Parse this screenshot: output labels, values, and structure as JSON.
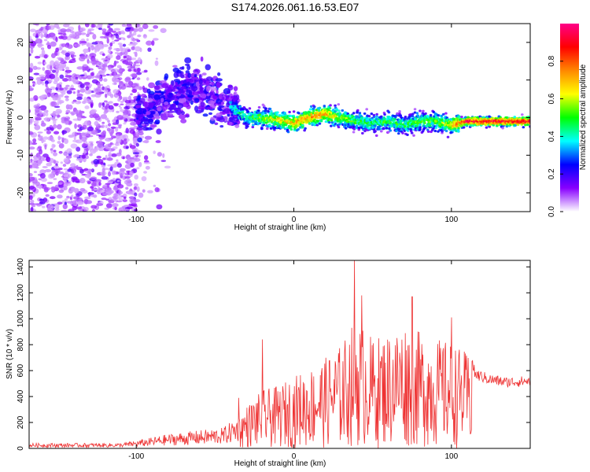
{
  "title": "S174.2026.061.16.53.E07",
  "colors": {
    "snr_line": "#ee3333",
    "axis": "#000000"
  },
  "chart_data": [
    {
      "type": "heatmap",
      "name": "spectrogram",
      "xlabel": "Height of straight line (km)",
      "ylabel": "Frequency (Hz)",
      "xlim": [
        -168,
        150
      ],
      "ylim": [
        -25,
        25
      ],
      "x_ticks": [
        -100,
        0,
        100
      ],
      "y_ticks": [
        -20,
        -10,
        0,
        10,
        20
      ],
      "colorbar": {
        "label": "Normalized spectral amplitude",
        "range": [
          0,
          1
        ],
        "ticks": [
          "0.0",
          "0.2",
          "0.4",
          "0.6",
          "0.8"
        ],
        "colormap": [
          "#ffffff",
          "#8800ff",
          "#0000ff",
          "#00ffff",
          "#00ff00",
          "#ffff00",
          "#ff8800",
          "#ff0000",
          "#ff0088"
        ]
      },
      "ridge": {
        "description_free": true,
        "x": [
          -100,
          -90,
          -80,
          -70,
          -60,
          -50,
          -40,
          -30,
          -20,
          -10,
          0,
          10,
          20,
          30,
          40,
          50,
          60,
          70,
          80,
          90,
          100,
          110,
          120,
          130,
          140,
          150
        ],
        "freq": [
          0,
          2,
          6,
          7,
          8,
          5,
          3,
          0,
          0,
          -0.5,
          -1.5,
          0,
          1,
          0,
          -1,
          -1.5,
          -1,
          -2,
          -1,
          -1,
          -2,
          -1,
          -1,
          -1,
          -1,
          -1
        ],
        "amplitude": [
          0.2,
          0.25,
          0.25,
          0.2,
          0.2,
          0.2,
          0.35,
          0.45,
          0.55,
          0.65,
          0.7,
          0.75,
          0.75,
          0.55,
          0.5,
          0.45,
          0.5,
          0.45,
          0.55,
          0.5,
          0.65,
          0.95,
          0.95,
          0.95,
          0.95,
          0.95
        ]
      }
    },
    {
      "type": "line",
      "name": "snr",
      "xlabel": "Height of straight line (km)",
      "ylabel": "SNR (10 * v/v)",
      "xlim": [
        -168,
        150
      ],
      "ylim": [
        0,
        1450
      ],
      "x_ticks": [
        -100,
        0,
        100
      ],
      "y_ticks": [
        0,
        200,
        400,
        600,
        800,
        1000,
        1200,
        1400
      ],
      "envelope_x": [
        -168,
        -140,
        -110,
        -100,
        -80,
        -60,
        -45,
        -35,
        -30,
        -20,
        -10,
        0,
        10,
        20,
        30,
        40,
        50,
        60,
        70,
        80,
        90,
        100,
        112,
        115,
        125,
        135,
        150
      ],
      "envelope_y": [
        40,
        40,
        40,
        60,
        110,
        140,
        160,
        250,
        330,
        450,
        480,
        560,
        620,
        700,
        800,
        1020,
        850,
        900,
        980,
        900,
        850,
        820,
        720,
        570,
        530,
        510,
        520
      ],
      "peaks": [
        {
          "x": 38.5,
          "y": 1450
        },
        {
          "x": 43,
          "y": 1180
        },
        {
          "x": 75,
          "y": 1170
        },
        {
          "x": 100,
          "y": 1010
        },
        {
          "x": -20,
          "y": 840
        },
        {
          "x": -35,
          "y": 390
        }
      ]
    }
  ]
}
